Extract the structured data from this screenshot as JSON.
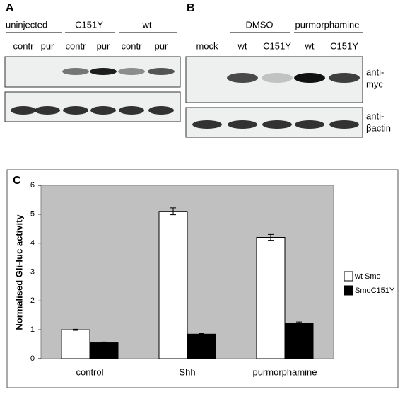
{
  "panel_a": {
    "label": "A",
    "groups": [
      "uninjected",
      "C151Y",
      "wt"
    ],
    "lanes": [
      "contr",
      "pur",
      "contr",
      "pur",
      "contr",
      "pur"
    ]
  },
  "panel_b": {
    "label": "B",
    "groups": [
      "DMSO",
      "purmorphamine"
    ],
    "lanes": [
      "mock",
      "wt",
      "C151Y",
      "wt",
      "C151Y"
    ],
    "antibodies": [
      [
        "anti-",
        "myc"
      ],
      [
        "anti-",
        "βactin"
      ]
    ]
  },
  "chart_data": {
    "type": "bar",
    "panel_label": "C",
    "y_label": "Normalised Gli-luc activity",
    "categories": [
      "control",
      "Shh",
      "purmorphamine"
    ],
    "series": [
      {
        "name": "wt Smo",
        "color": "#ffffff",
        "values": [
          1.0,
          5.1,
          4.2
        ],
        "errors": [
          0.02,
          0.12,
          0.1
        ]
      },
      {
        "name": "SmoC151Y",
        "color": "#000000",
        "values": [
          0.55,
          0.85,
          1.22
        ],
        "errors": [
          0.03,
          0.02,
          0.05
        ]
      }
    ],
    "ylim": [
      0,
      6
    ],
    "yticks": [
      0,
      1,
      2,
      3,
      4,
      5,
      6
    ],
    "grid": false,
    "legend": "right"
  }
}
